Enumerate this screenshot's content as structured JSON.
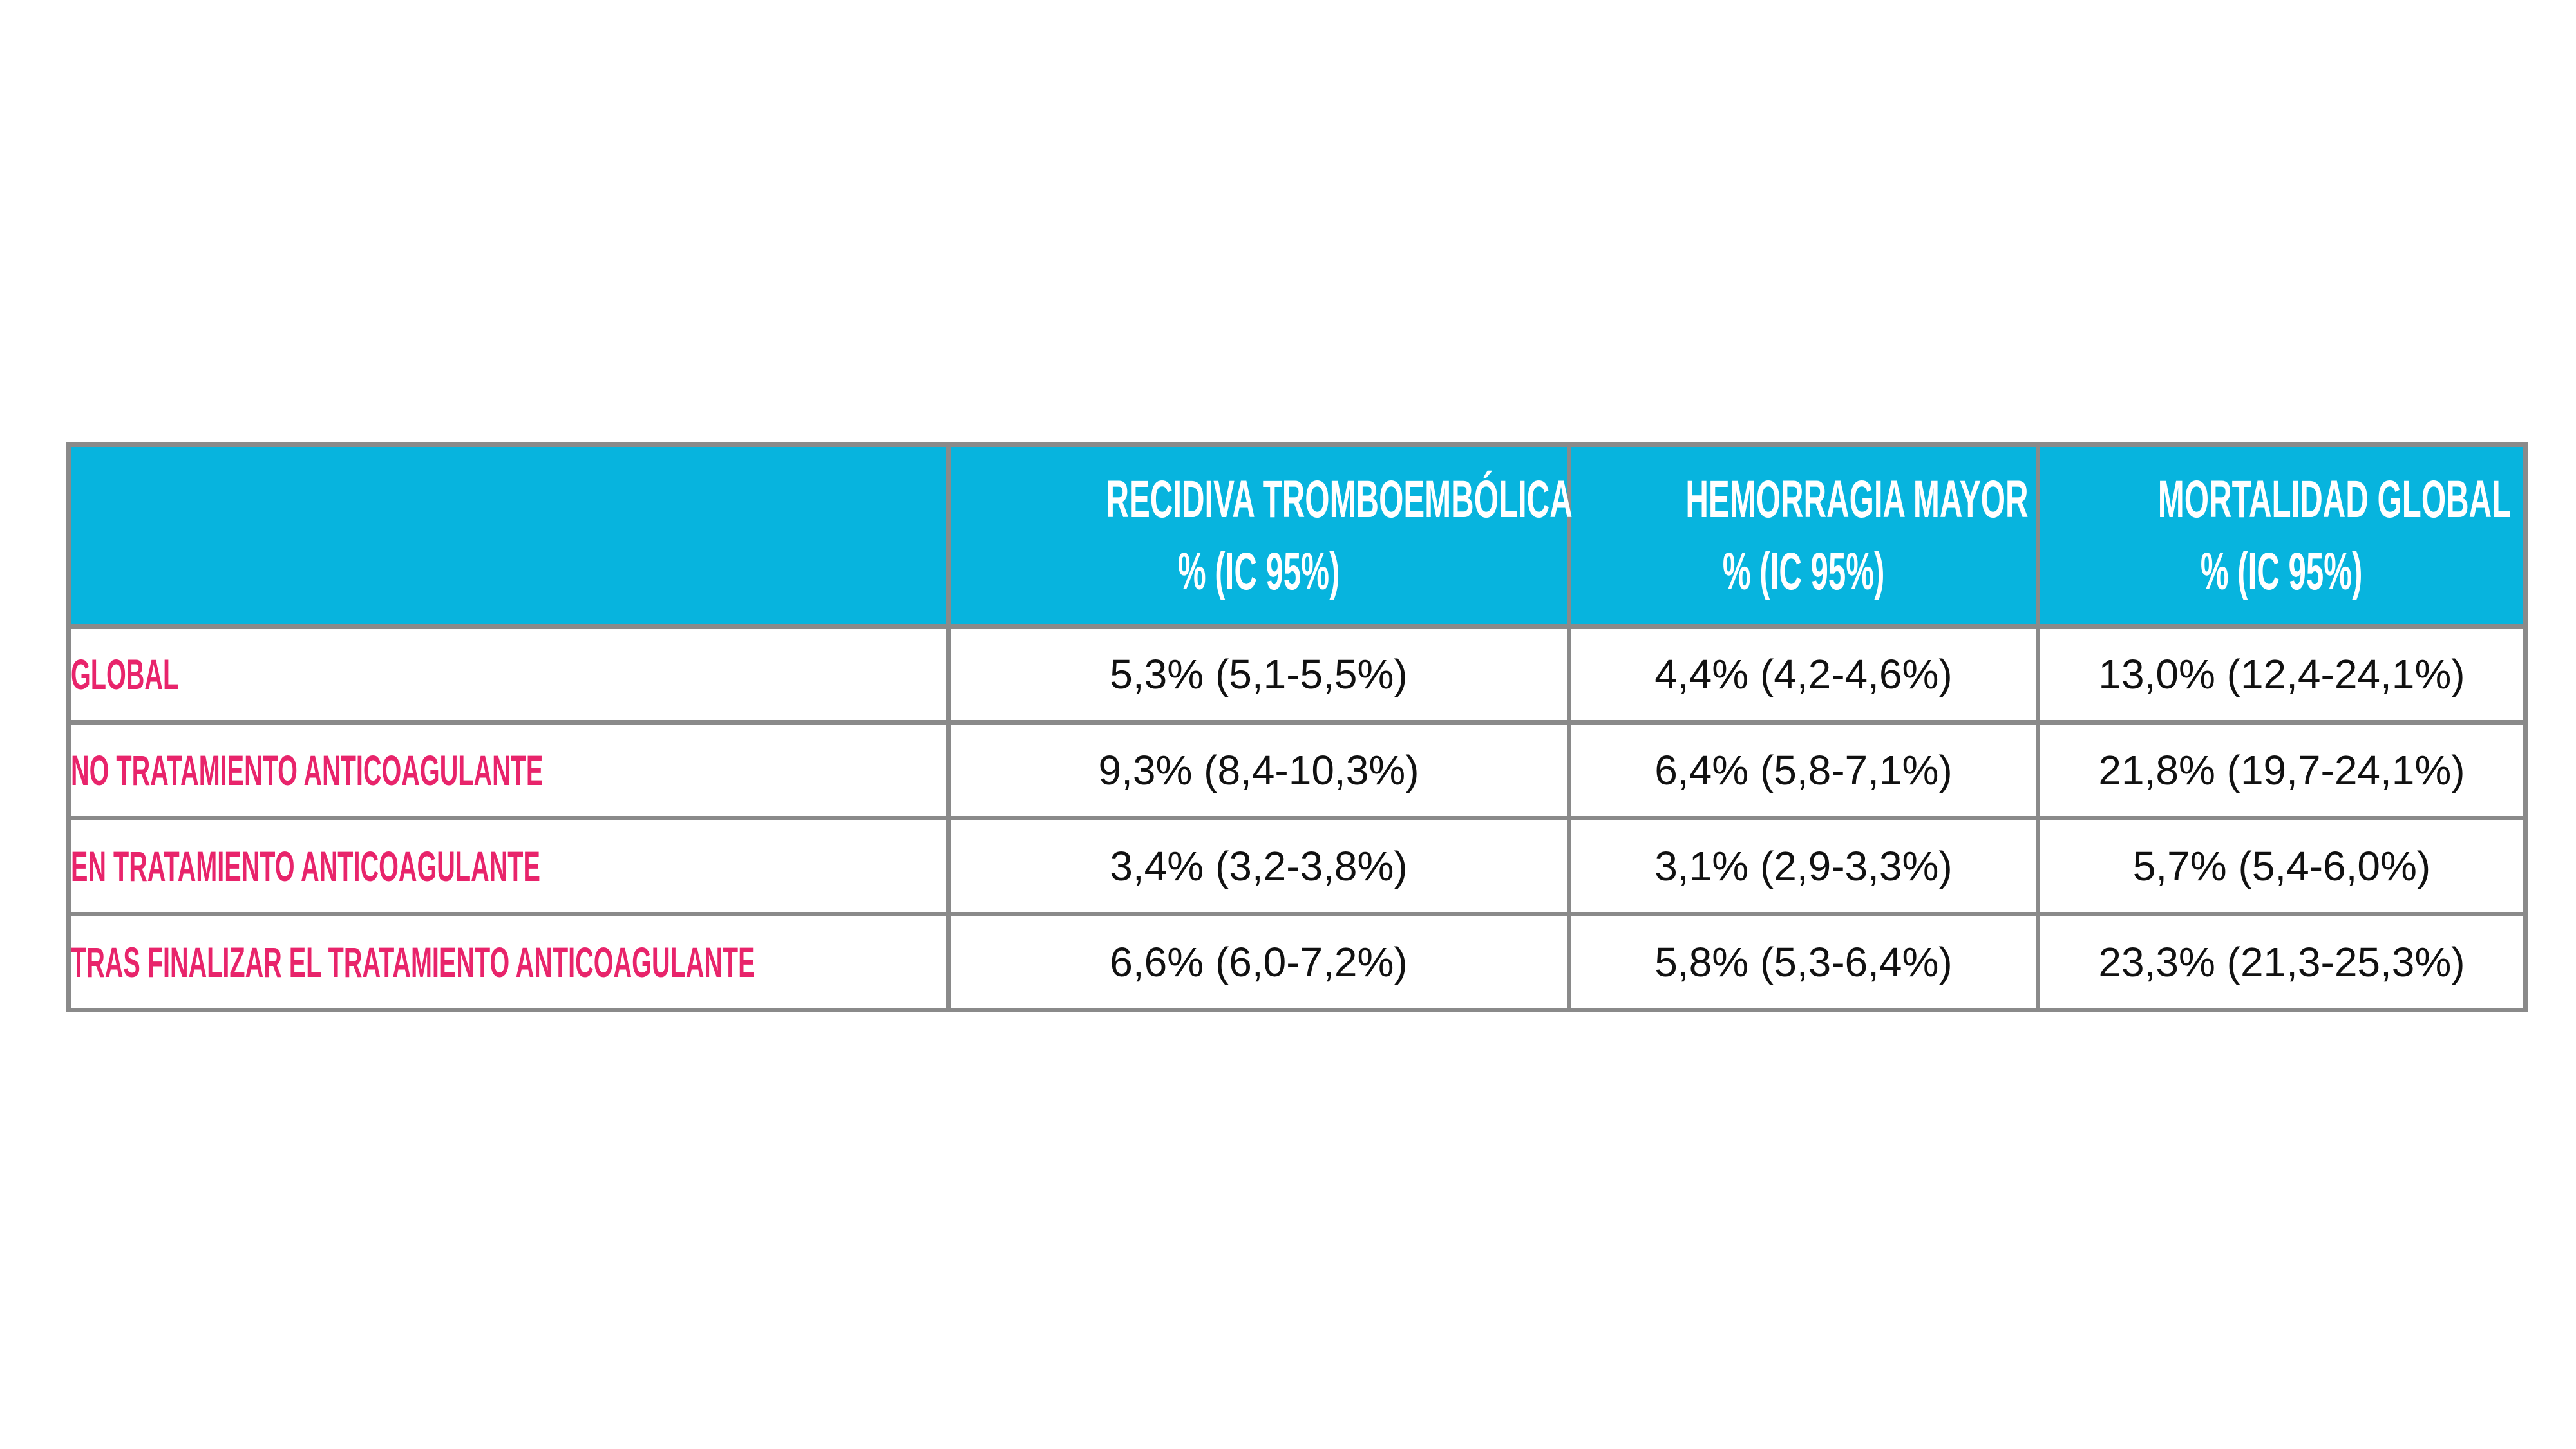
{
  "table": {
    "headers": [
      {
        "line1": "",
        "line2": ""
      },
      {
        "line1": "RECIDIVA TROMBOEMBÓLICA",
        "line2": "% (IC 95%)"
      },
      {
        "line1": "HEMORRAGIA MAYOR",
        "line2": "% (IC 95%)"
      },
      {
        "line1": "MORTALIDAD GLOBAL",
        "line2": "% (IC 95%)"
      }
    ],
    "rows": [
      {
        "label": "GLOBAL",
        "values": [
          "5,3% (5,1-5,5%)",
          "4,4% (4,2-4,6%)",
          "13,0% (12,4-24,1%)"
        ]
      },
      {
        "label": "NO TRATAMIENTO ANTICOAGULANTE",
        "values": [
          "9,3% (8,4-10,3%)",
          "6,4% (5,8-7,1%)",
          "21,8% (19,7-24,1%)"
        ]
      },
      {
        "label": "EN TRATAMIENTO ANTICOAGULANTE",
        "values": [
          "3,4% (3,2-3,8%)",
          "3,1% (2,9-3,3%)",
          "5,7% (5,4-6,0%)"
        ]
      },
      {
        "label": "TRAS FINALIZAR EL TRATAMIENTO ANTICOAGULANTE",
        "values": [
          "6,6% (6,0-7,2%)",
          "5,8% (5,3-6,4%)",
          "23,3% (21,3-25,3%)"
        ]
      }
    ],
    "colors": {
      "header_bg": "#07b4de",
      "label": "#e8246b",
      "border": "#8a8a8a"
    }
  }
}
